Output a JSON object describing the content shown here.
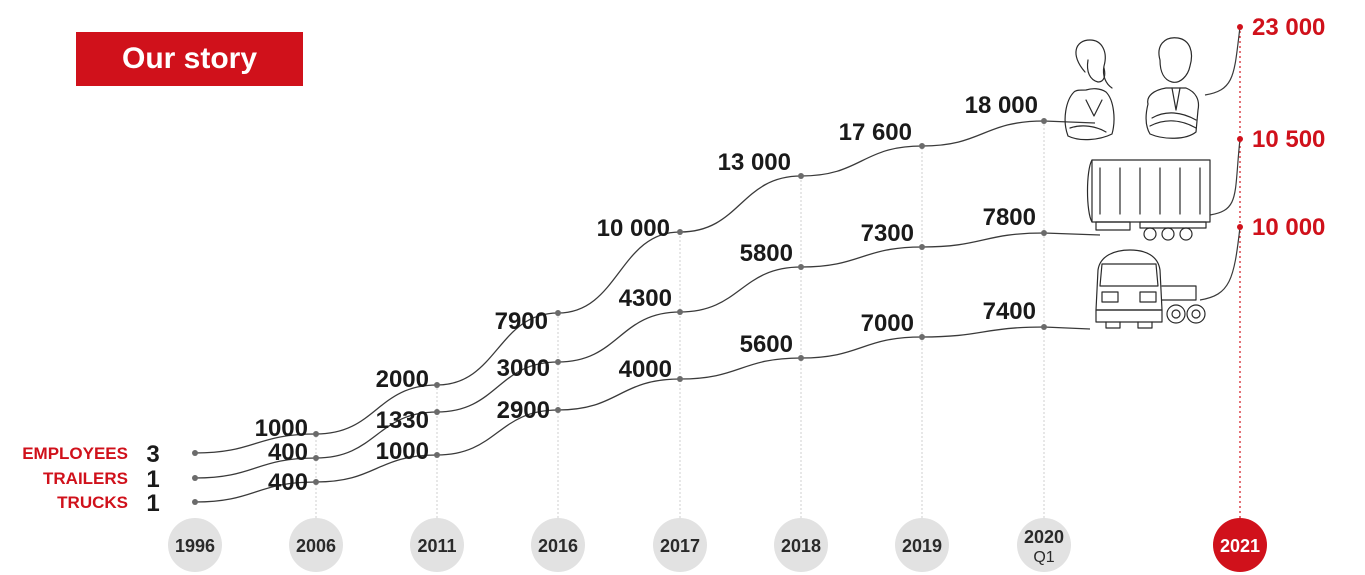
{
  "header": {
    "title": "Our story"
  },
  "colors": {
    "accent": "#d0111b",
    "line": "#3a3a3a",
    "marker": "#6b6b6b",
    "circle": "#e2e2e2"
  },
  "chart_data": {
    "type": "line",
    "title": "Our story",
    "x": [
      "1996",
      "2006",
      "2011",
      "2016",
      "2017",
      "2018",
      "2019",
      "2020",
      "2021"
    ],
    "x_sublabels": [
      "",
      "",
      "",
      "",
      "",
      "",
      "",
      "Q1",
      ""
    ],
    "highlight_x": "2021",
    "series": [
      {
        "name": "EMPLOYEES",
        "start_label": "3",
        "values": [
          3,
          1000,
          2000,
          7900,
          10000,
          13000,
          17600,
          18000,
          23000
        ],
        "labels": [
          "3",
          "1000",
          "2000",
          "7900",
          "10 000",
          "13 000",
          "17 600",
          "18 000",
          "23 000"
        ]
      },
      {
        "name": "TRAILERS",
        "start_label": "1",
        "values": [
          1,
          400,
          1330,
          3000,
          4300,
          5800,
          7300,
          7800,
          10500
        ],
        "labels": [
          "1",
          "400",
          "1330",
          "3000",
          "4300",
          "5800",
          "7300",
          "7800",
          "10 500"
        ]
      },
      {
        "name": "TRUCKS",
        "start_label": "1",
        "values": [
          1,
          400,
          1000,
          2900,
          4000,
          5600,
          7000,
          7400,
          10000
        ],
        "labels": [
          "1",
          "400",
          "1000",
          "2900",
          "4000",
          "5600",
          "7000",
          "7400",
          "10 000"
        ]
      }
    ],
    "icons": [
      "business-people-icon",
      "trailer-icon",
      "truck-icon"
    ]
  }
}
